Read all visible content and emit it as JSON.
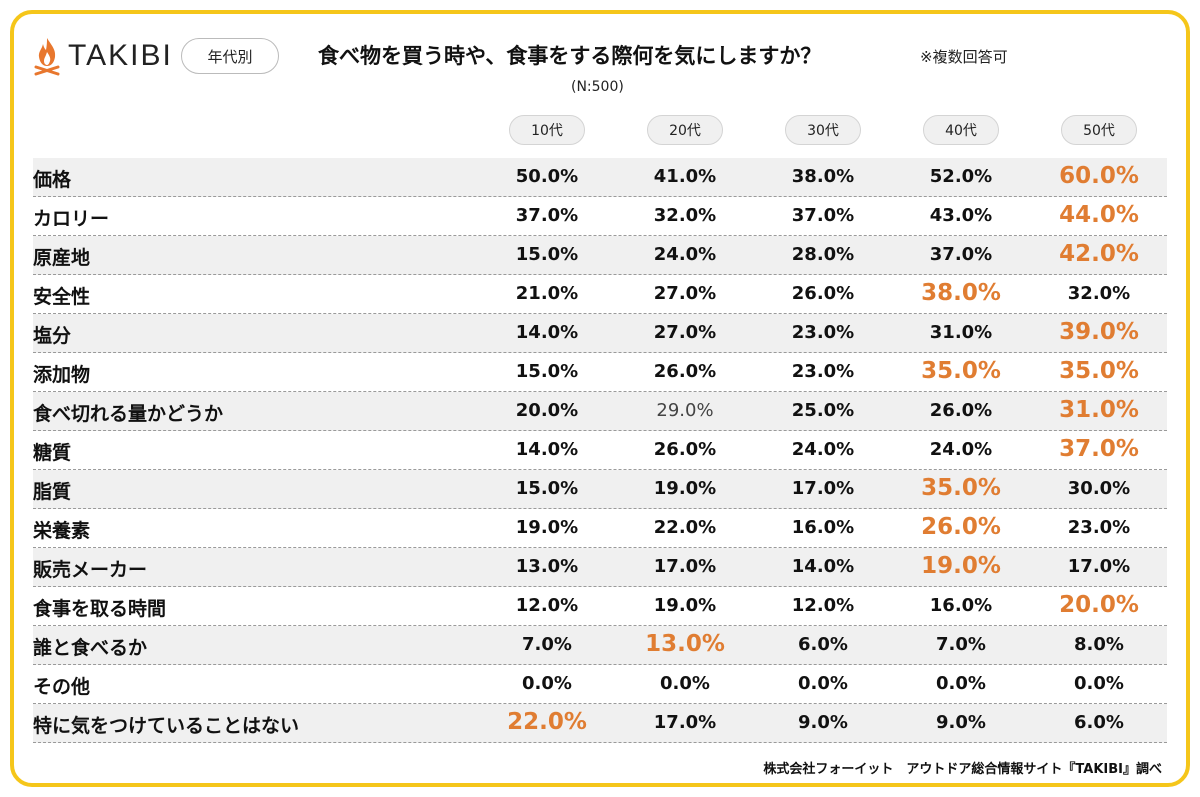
{
  "header": {
    "logo_text": "TAKIBI",
    "filter_label": "年代別",
    "question": "食べ物を買う時や、食事をする際何を気にしますか？",
    "note": "※複数回答可",
    "sample": "(N:500)"
  },
  "colors": {
    "accent": "#e07d32",
    "frame": "#f5c61a",
    "row_shade": "#f0f0f0"
  },
  "chart_data": {
    "type": "table",
    "columns": [
      "10代",
      "20代",
      "30代",
      "40代",
      "50代"
    ],
    "rows": [
      {
        "label": "価格",
        "values": [
          "50.0%",
          "41.0%",
          "38.0%",
          "52.0%",
          "60.0%"
        ],
        "highlight": [
          4
        ]
      },
      {
        "label": "カロリー",
        "values": [
          "37.0%",
          "32.0%",
          "37.0%",
          "43.0%",
          "44.0%"
        ],
        "highlight": [
          4
        ]
      },
      {
        "label": "原産地",
        "values": [
          "15.0%",
          "24.0%",
          "28.0%",
          "37.0%",
          "42.0%"
        ],
        "highlight": [
          4
        ]
      },
      {
        "label": "安全性",
        "values": [
          "21.0%",
          "27.0%",
          "26.0%",
          "38.0%",
          "32.0%"
        ],
        "highlight": [
          3
        ]
      },
      {
        "label": "塩分",
        "values": [
          "14.0%",
          "27.0%",
          "23.0%",
          "31.0%",
          "39.0%"
        ],
        "highlight": [
          4
        ]
      },
      {
        "label": "添加物",
        "values": [
          "15.0%",
          "26.0%",
          "23.0%",
          "35.0%",
          "35.0%"
        ],
        "highlight": [
          3,
          4
        ]
      },
      {
        "label": "食べ切れる量かどうか",
        "values": [
          "20.0%",
          "29.0%",
          "25.0%",
          "26.0%",
          "31.0%"
        ],
        "highlight": [
          4
        ]
      },
      {
        "label": "糖質",
        "values": [
          "14.0%",
          "26.0%",
          "24.0%",
          "24.0%",
          "37.0%"
        ],
        "highlight": [
          4
        ]
      },
      {
        "label": "脂質",
        "values": [
          "15.0%",
          "19.0%",
          "17.0%",
          "35.0%",
          "30.0%"
        ],
        "highlight": [
          3
        ]
      },
      {
        "label": "栄養素",
        "values": [
          "19.0%",
          "22.0%",
          "16.0%",
          "26.0%",
          "23.0%"
        ],
        "highlight": [
          3
        ]
      },
      {
        "label": "販売メーカー",
        "values": [
          "13.0%",
          "17.0%",
          "14.0%",
          "19.0%",
          "17.0%"
        ],
        "highlight": [
          3
        ]
      },
      {
        "label": "食事を取る時間",
        "values": [
          "12.0%",
          "19.0%",
          "12.0%",
          "16.0%",
          "20.0%"
        ],
        "highlight": [
          4
        ]
      },
      {
        "label": "誰と食べるか",
        "values": [
          "7.0%",
          "13.0%",
          "6.0%",
          "7.0%",
          "8.0%"
        ],
        "highlight": [
          1
        ]
      },
      {
        "label": "その他",
        "values": [
          "0.0%",
          "0.0%",
          "0.0%",
          "0.0%",
          "0.0%"
        ],
        "highlight": []
      },
      {
        "label": "特に気をつけていることはない",
        "values": [
          "22.0%",
          "17.0%",
          "9.0%",
          "9.0%",
          "6.0%"
        ],
        "highlight": [
          0
        ]
      }
    ]
  },
  "footer": {
    "credit": "株式会社フォーイット　アウトドア総合情報サイト『TAKIBI』調べ"
  }
}
